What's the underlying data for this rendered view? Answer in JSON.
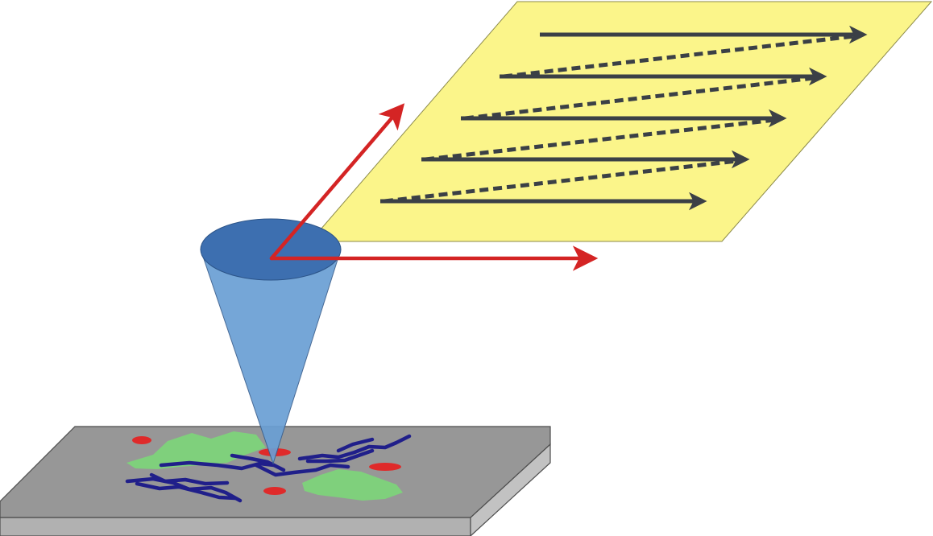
{
  "colors": {
    "background": "#ffffff",
    "scan_plane_fill": "#fbf58a",
    "scan_plane_stroke": "#8c8a4a",
    "scan_arrow": "#3b4046",
    "axis_arrow": "#d42424",
    "cone_base": "#3d6fb0",
    "cone_body": "#6a9fd4",
    "substrate_top": "#979797",
    "substrate_front": "#b1b1b1",
    "substrate_side": "#c2c2c2",
    "substrate_edge": "#4d4d4d",
    "sample_fiber": "#201f8a",
    "sample_particle": "#df2a2a",
    "sample_cluster": "#7fd07c"
  },
  "icons": {
    "probe": "cone-probe-icon",
    "scan_arrows": "raster-arrow-icon",
    "axes": "red-axis-arrow-icon"
  },
  "raster_scan": {
    "forward_lines": 5,
    "retrace_lines": 4
  }
}
